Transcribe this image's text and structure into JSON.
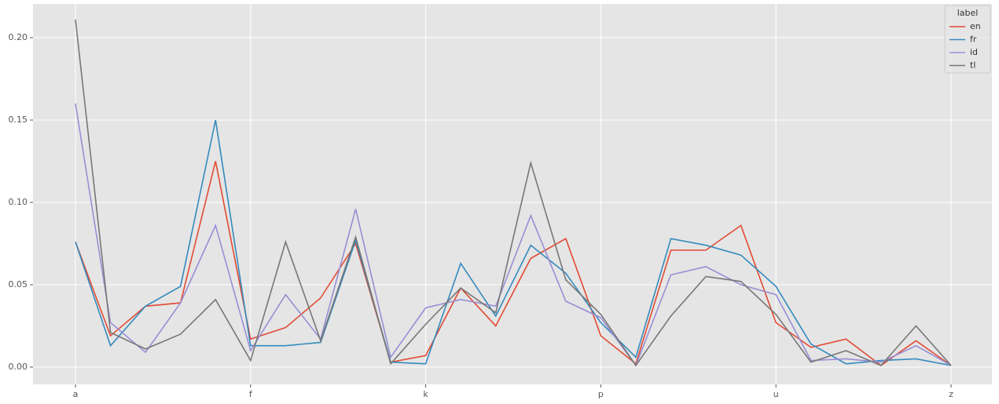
{
  "chart_data": {
    "type": "line",
    "categories": [
      "a",
      null,
      null,
      null,
      null,
      "f",
      null,
      null,
      null,
      null,
      "k",
      null,
      null,
      null,
      null,
      "p",
      null,
      null,
      null,
      null,
      "u",
      null,
      null,
      null,
      null,
      "z"
    ],
    "series": [
      {
        "name": "en",
        "color": "#E24A33",
        "values": [
          0.076,
          0.019,
          0.037,
          0.039,
          0.125,
          0.017,
          0.024,
          0.042,
          0.075,
          0.003,
          0.007,
          0.048,
          0.025,
          0.066,
          0.078,
          0.019,
          0.002,
          0.071,
          0.071,
          0.086,
          0.027,
          0.012,
          0.017,
          0.001,
          0.016,
          0.001
        ]
      },
      {
        "name": "fr",
        "color": "#348ABD",
        "values": [
          0.076,
          0.013,
          0.037,
          0.049,
          0.15,
          0.013,
          0.013,
          0.015,
          0.077,
          0.003,
          0.002,
          0.063,
          0.031,
          0.074,
          0.057,
          0.027,
          0.006,
          0.078,
          0.074,
          0.068,
          0.049,
          0.014,
          0.002,
          0.004,
          0.005,
          0.001
        ]
      },
      {
        "name": "id",
        "color": "#988ED5",
        "values": [
          0.16,
          0.027,
          0.009,
          0.039,
          0.086,
          0.01,
          0.044,
          0.017,
          0.096,
          0.006,
          0.036,
          0.041,
          0.037,
          0.092,
          0.04,
          0.03,
          0.001,
          0.056,
          0.061,
          0.05,
          0.044,
          0.004,
          0.005,
          0.003,
          0.013,
          0.001
        ]
      },
      {
        "name": "tl",
        "color": "#777777",
        "values": [
          0.211,
          0.021,
          0.011,
          0.02,
          0.041,
          0.004,
          0.076,
          0.016,
          0.079,
          0.002,
          0.026,
          0.048,
          0.033,
          0.124,
          0.053,
          0.032,
          0.001,
          0.031,
          0.055,
          0.052,
          0.032,
          0.003,
          0.01,
          0.001,
          0.025,
          0.001
        ]
      }
    ],
    "ylim": [
      -0.0105,
      0.2205
    ],
    "yticks": [
      {
        "value": 0,
        "label": "0.00"
      },
      {
        "value": 0.05,
        "label": "0.05"
      },
      {
        "value": 0.1,
        "label": "0.10"
      },
      {
        "value": 0.15,
        "label": "0.15"
      },
      {
        "value": 0.2,
        "label": "0.20"
      }
    ],
    "grid": true,
    "legend_title": "label",
    "legend_position": "upper right"
  }
}
